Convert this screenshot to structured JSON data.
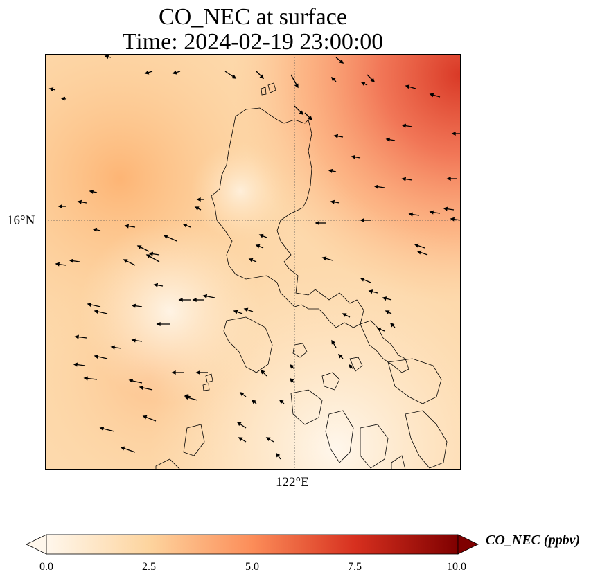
{
  "title": {
    "line1": "CO_NEC at surface",
    "line2": "Time: 2024-02-19 23:00:00"
  },
  "axes": {
    "lat_tick": "16°N",
    "lon_tick": "122°E"
  },
  "colorbar": {
    "label": "CO_NEC (ppbv)",
    "ticks": [
      "0.0",
      "2.5",
      "5.0",
      "7.5",
      "10.0"
    ],
    "range": [
      0,
      10
    ],
    "extend": "both",
    "colormap": "OrRd",
    "colors": [
      "#fff7ec",
      "#fdd49e",
      "#fc8d59",
      "#d7301f",
      "#7f0000"
    ]
  },
  "map": {
    "gridlines": "dotted",
    "coastline_color": "#000000",
    "vector_color": "#000000"
  }
}
